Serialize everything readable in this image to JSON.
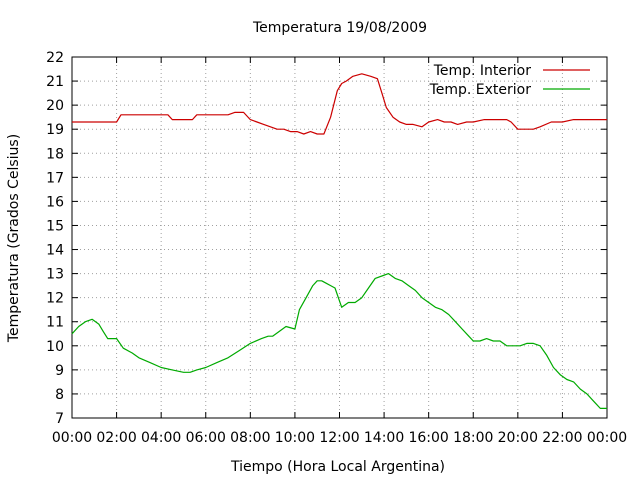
{
  "chart_data": {
    "type": "line",
    "title": "Temperatura 19/08/2009",
    "xlabel": "Tiempo (Hora Local Argentina)",
    "ylabel": "Temperatura (Grados Celsius)",
    "xlim": [
      0,
      24
    ],
    "ylim": [
      7,
      22
    ],
    "x_tick_values": [
      0,
      2,
      4,
      6,
      8,
      10,
      12,
      14,
      16,
      18,
      20,
      22,
      24
    ],
    "x_tick_labels": [
      "00:00",
      "02:00",
      "04:00",
      "06:00",
      "08:00",
      "10:00",
      "12:00",
      "14:00",
      "16:00",
      "18:00",
      "20:00",
      "22:00",
      "00:00"
    ],
    "y_tick_values": [
      7,
      8,
      9,
      10,
      11,
      12,
      13,
      14,
      15,
      16,
      17,
      18,
      19,
      20,
      21,
      22
    ],
    "y_tick_labels": [
      "7",
      "8",
      "9",
      "10",
      "11",
      "12",
      "13",
      "14",
      "15",
      "16",
      "17",
      "18",
      "19",
      "20",
      "21",
      "22"
    ],
    "grid": true,
    "legend_position": "top-right",
    "series": [
      {
        "name": "Temp. Interior",
        "color": "#cc0000",
        "x": [
          0,
          0.5,
          1,
          1.5,
          2,
          2.2,
          2.5,
          3,
          3.5,
          4,
          4.3,
          4.5,
          5,
          5.4,
          5.6,
          6,
          6.5,
          7,
          7.3,
          7.7,
          8,
          8.3,
          8.6,
          8.9,
          9.2,
          9.5,
          9.8,
          10.1,
          10.4,
          10.7,
          11,
          11.3,
          11.6,
          11.9,
          12.1,
          12.3,
          12.6,
          13,
          13.4,
          13.7,
          13.9,
          14.1,
          14.4,
          14.7,
          15,
          15.3,
          15.7,
          16,
          16.4,
          16.7,
          17,
          17.3,
          17.7,
          18,
          18.5,
          19,
          19.5,
          19.7,
          20,
          20.3,
          20.7,
          21,
          21.5,
          22,
          22.5,
          23,
          23.5,
          24
        ],
        "y": [
          19.3,
          19.3,
          19.3,
          19.3,
          19.3,
          19.6,
          19.6,
          19.6,
          19.6,
          19.6,
          19.6,
          19.4,
          19.4,
          19.4,
          19.6,
          19.6,
          19.6,
          19.6,
          19.7,
          19.7,
          19.4,
          19.3,
          19.2,
          19.1,
          19.0,
          19.0,
          18.9,
          18.9,
          18.8,
          18.9,
          18.8,
          18.8,
          19.5,
          20.6,
          20.9,
          21.0,
          21.2,
          21.3,
          21.2,
          21.1,
          20.5,
          19.9,
          19.5,
          19.3,
          19.2,
          19.2,
          19.1,
          19.3,
          19.4,
          19.3,
          19.3,
          19.2,
          19.3,
          19.3,
          19.4,
          19.4,
          19.4,
          19.3,
          19.0,
          19.0,
          19.0,
          19.1,
          19.3,
          19.3,
          19.4,
          19.4,
          19.4,
          19.4
        ]
      },
      {
        "name": "Temp. Exterior",
        "color": "#00aa00",
        "x": [
          0,
          0.3,
          0.6,
          0.9,
          1.2,
          1.4,
          1.6,
          2,
          2.3,
          2.7,
          3,
          3.5,
          4,
          4.5,
          5,
          5.3,
          5.6,
          6,
          6.5,
          7,
          7.5,
          8,
          8.5,
          8.8,
          9,
          9.3,
          9.6,
          10,
          10.2,
          10.5,
          10.8,
          11,
          11.2,
          11.4,
          11.6,
          11.8,
          12.1,
          12.4,
          12.7,
          13,
          13.3,
          13.6,
          13.9,
          14.2,
          14.5,
          14.8,
          15.1,
          15.4,
          15.7,
          16,
          16.3,
          16.6,
          16.9,
          17.2,
          17.5,
          17.8,
          18,
          18.3,
          18.6,
          18.9,
          19.2,
          19.5,
          19.8,
          20.1,
          20.4,
          20.7,
          21,
          21.3,
          21.6,
          21.9,
          22.2,
          22.5,
          22.8,
          23.1,
          23.4,
          23.7,
          24
        ],
        "y": [
          10.5,
          10.8,
          11.0,
          11.1,
          10.9,
          10.6,
          10.3,
          10.3,
          9.9,
          9.7,
          9.5,
          9.3,
          9.1,
          9.0,
          8.9,
          8.9,
          9.0,
          9.1,
          9.3,
          9.5,
          9.8,
          10.1,
          10.3,
          10.4,
          10.4,
          10.6,
          10.8,
          10.7,
          11.5,
          12.0,
          12.5,
          12.7,
          12.7,
          12.6,
          12.5,
          12.4,
          11.6,
          11.8,
          11.8,
          12.0,
          12.4,
          12.8,
          12.9,
          13.0,
          12.8,
          12.7,
          12.5,
          12.3,
          12.0,
          11.8,
          11.6,
          11.5,
          11.3,
          11.0,
          10.7,
          10.4,
          10.2,
          10.2,
          10.3,
          10.2,
          10.2,
          10.0,
          10.0,
          10.0,
          10.1,
          10.1,
          10.0,
          9.6,
          9.1,
          8.8,
          8.6,
          8.5,
          8.2,
          8.0,
          7.7,
          7.4,
          7.4
        ]
      }
    ]
  }
}
